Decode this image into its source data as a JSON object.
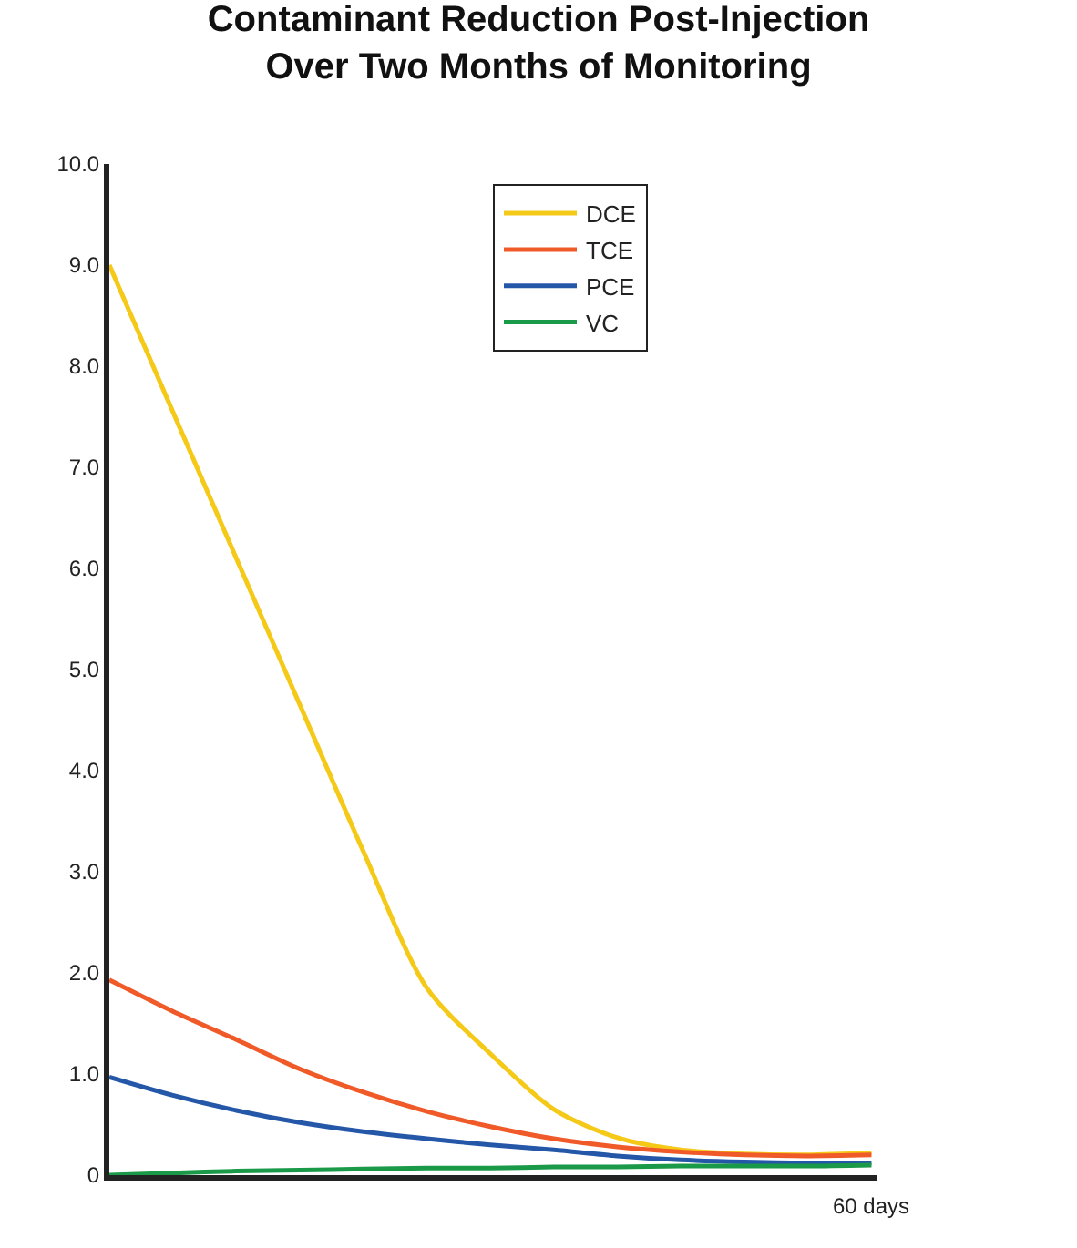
{
  "chart_data": {
    "type": "line",
    "title": "Contaminant Reduction Post-Injection\nOver Two Months of Monitoring",
    "ylim": [
      0,
      10
    ],
    "yticks": [
      {
        "value": 0,
        "label": "0"
      },
      {
        "value": 1,
        "label": "1.0"
      },
      {
        "value": 2,
        "label": "2.0"
      },
      {
        "value": 3,
        "label": "3.0"
      },
      {
        "value": 4,
        "label": "4.0"
      },
      {
        "value": 5,
        "label": "5.0"
      },
      {
        "value": 6,
        "label": "6.0"
      },
      {
        "value": 7,
        "label": "7.0"
      },
      {
        "value": 8,
        "label": "8.0"
      },
      {
        "value": 9,
        "label": "9.0"
      },
      {
        "value": 10,
        "label": "10.0"
      }
    ],
    "categories": [
      null,
      null,
      null,
      null,
      null,
      null,
      null,
      null,
      null,
      null,
      null,
      null,
      null
    ],
    "annotations": [
      "60 days"
    ],
    "legend": "top right",
    "marker": "none",
    "line_style": "solid",
    "series": [
      {
        "name": "DCE",
        "color": "#f5c918",
        "values": [
          9.0,
          7.55,
          6.1,
          4.65,
          3.2,
          1.85,
          1.2,
          0.65,
          0.37,
          0.25,
          0.21,
          0.2,
          0.22
        ]
      },
      {
        "name": "TCE",
        "color": "#f05a28",
        "values": [
          1.93,
          1.62,
          1.34,
          1.05,
          0.82,
          0.63,
          0.48,
          0.36,
          0.28,
          0.23,
          0.2,
          0.19,
          0.2
        ]
      },
      {
        "name": "PCE",
        "color": "#2457a8",
        "values": [
          0.97,
          0.79,
          0.64,
          0.52,
          0.43,
          0.36,
          0.3,
          0.25,
          0.19,
          0.15,
          0.13,
          0.12,
          0.12
        ]
      },
      {
        "name": "VC",
        "color": "#1a9a48",
        "values": [
          0,
          0.02,
          0.04,
          0.05,
          0.06,
          0.07,
          0.07,
          0.08,
          0.08,
          0.09,
          0.09,
          0.09,
          0.1
        ]
      }
    ]
  }
}
